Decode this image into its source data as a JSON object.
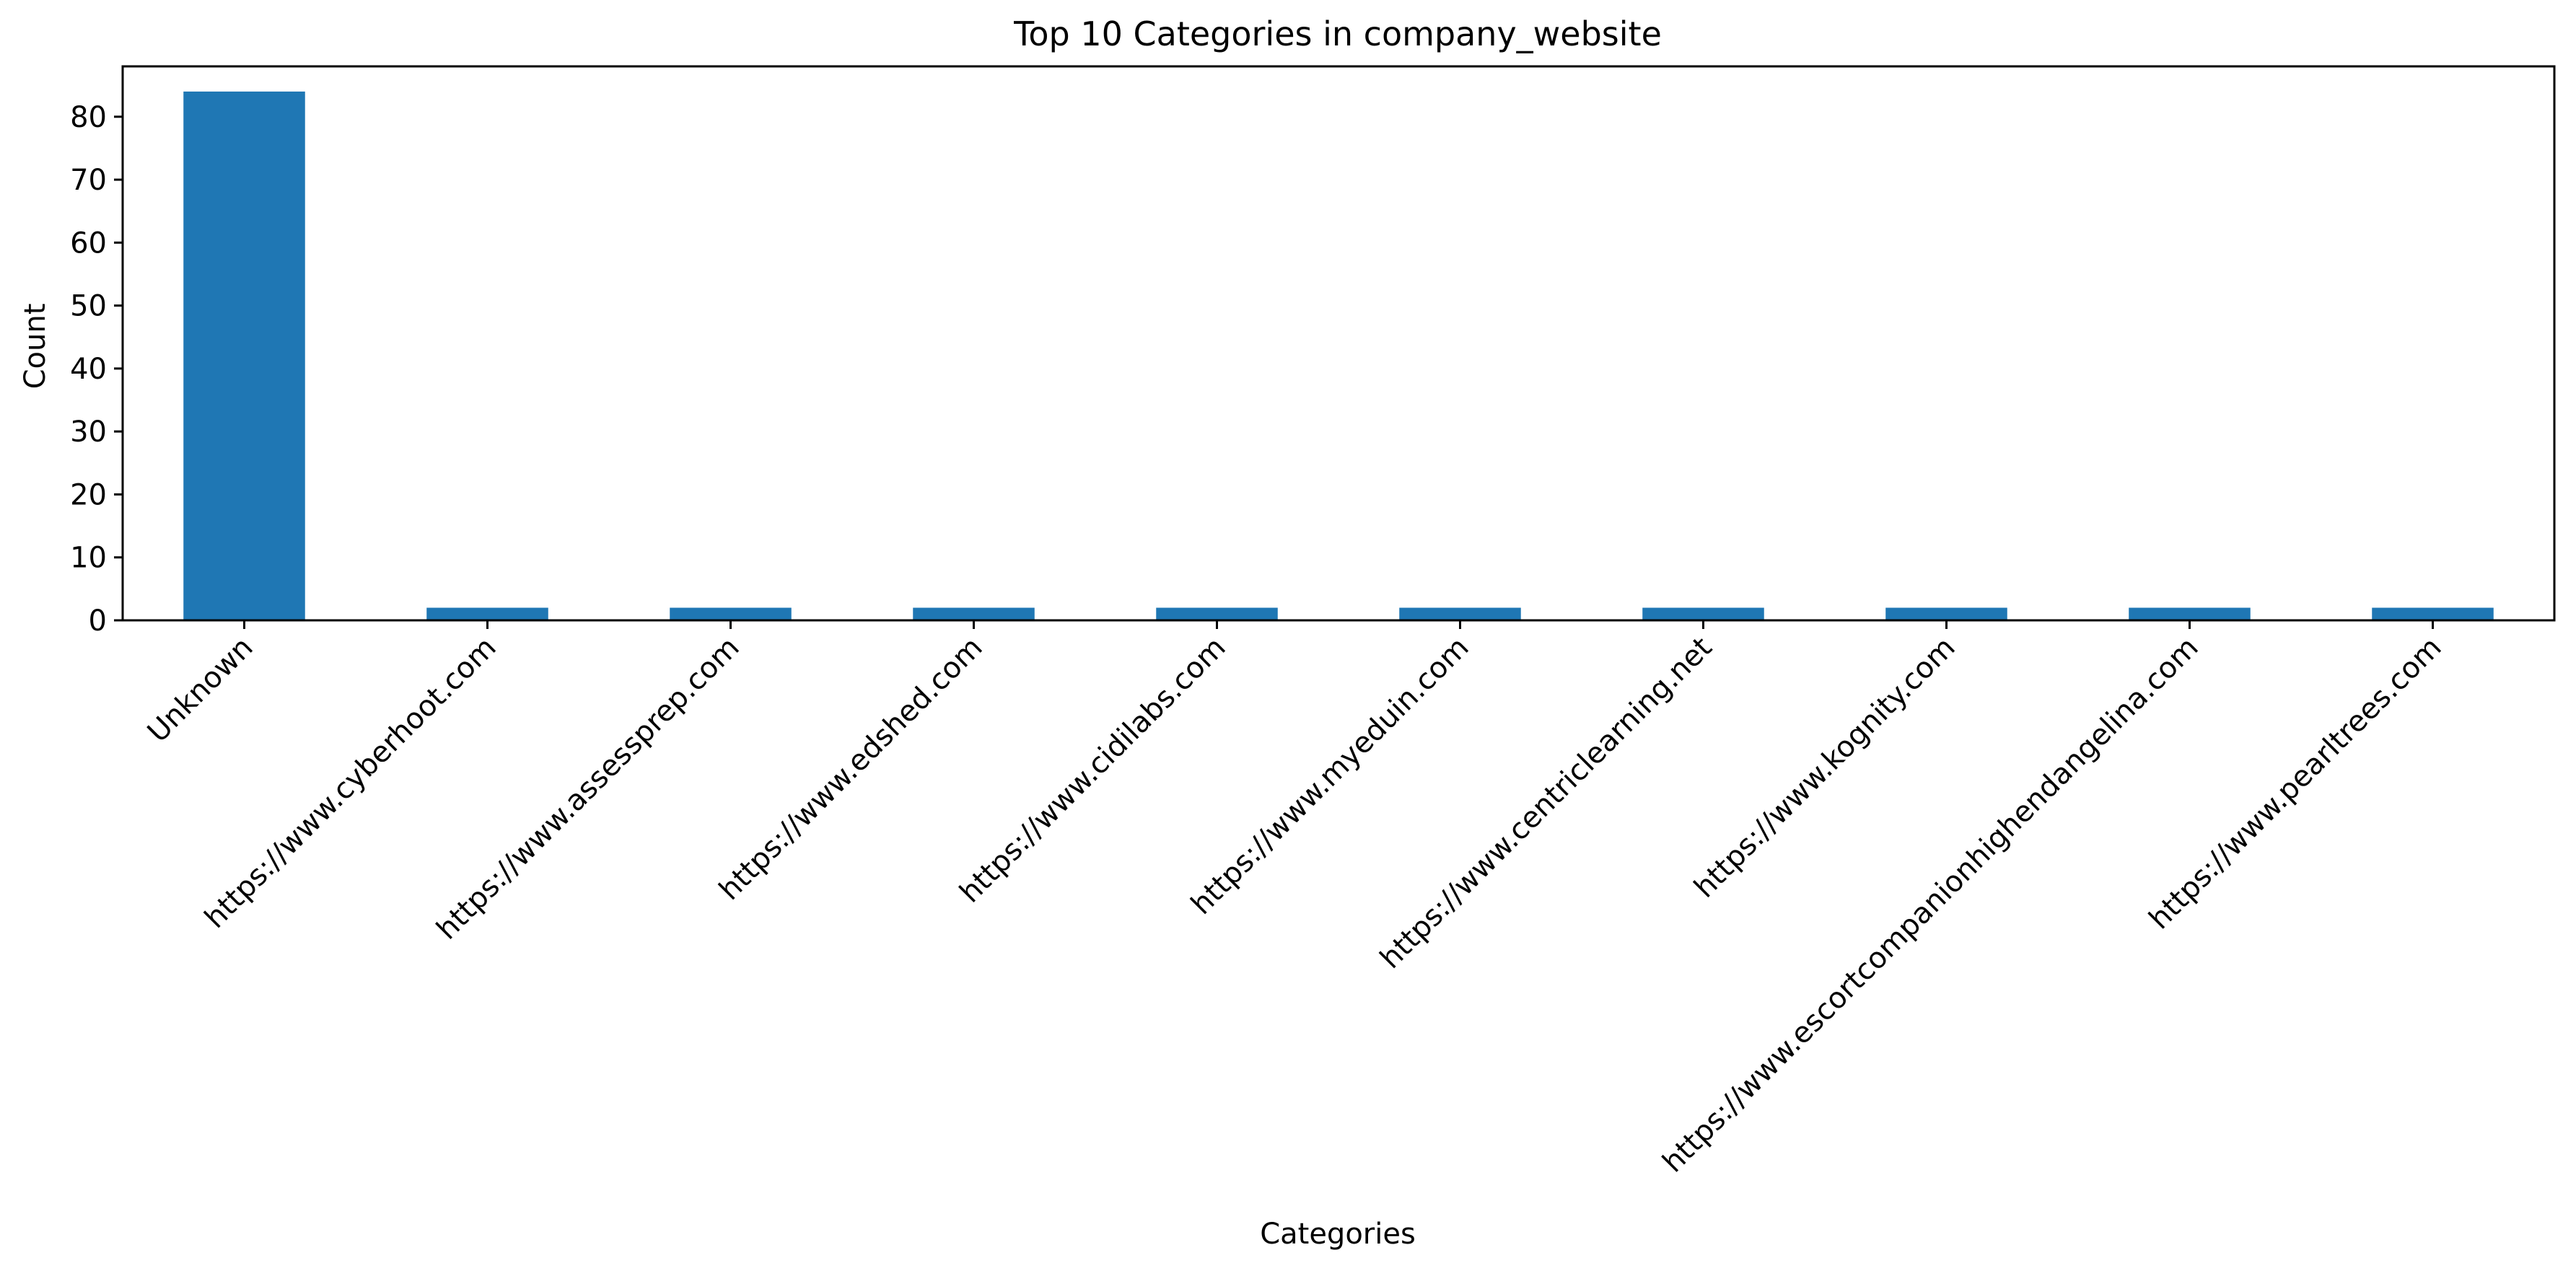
{
  "chart_data": {
    "type": "bar",
    "title": "Top 10 Categories in company_website",
    "xlabel": "Categories",
    "ylabel": "Count",
    "categories": [
      "Unknown",
      "https://www.cyberhoot.com",
      "https://www.assessprep.com",
      "https://www.edshed.com",
      "https://www.cidilabs.com",
      "https://www.myeduin.com",
      "https://www.centriclearning.net",
      "https://www.kognity.com",
      "https://www.escortcompanionhighendangelina.com",
      "https://www.pearltrees.com"
    ],
    "values": [
      84,
      2,
      2,
      2,
      2,
      2,
      2,
      2,
      2,
      2
    ],
    "ylim": [
      0,
      88
    ],
    "yticks": [
      0,
      10,
      20,
      30,
      40,
      50,
      60,
      70,
      80
    ],
    "bar_color": "#1f77b4",
    "grid": false,
    "legend": "none"
  }
}
